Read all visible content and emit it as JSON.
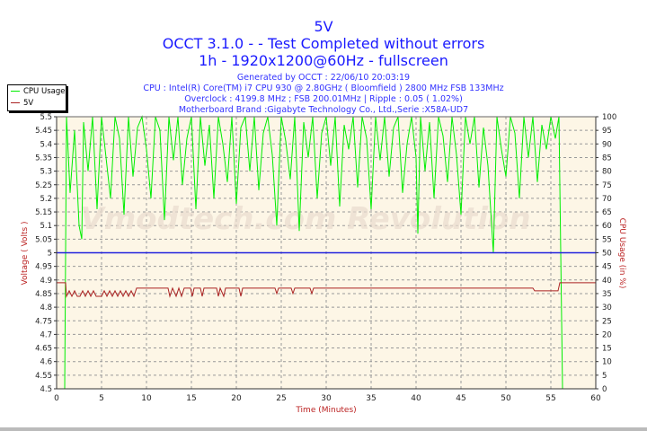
{
  "header": {
    "title": "5V",
    "subtitle": "OCCT 3.1.0 -  - Test Completed without errors",
    "mode": "1h - 1920x1200@60Hz - fullscreen",
    "info": [
      "Generated by OCCT : 22/06/10 20:03:19",
      "CPU : Intel(R) Core(TM) i7 CPU 930 @ 2.80GHz ( Bloomfield ) 2800 MHz FSB 133MHz",
      "Overclock : 4199.8 MHz ; FSB 200.01MHz | Ripple : 0.05 ( 1.02%)",
      "Motherboard Brand :Gigabyte Technology Co., Ltd.,Serie :X58A-UD7"
    ]
  },
  "watermark": "Vmodtech.com Revolution",
  "colors": {
    "cpu": "#00ee00",
    "voltage": "#aa2222",
    "reference": "#2222dd",
    "plot_bg": "#fdf6e6",
    "title": "#1a1aff",
    "axis_label": "#bb2222"
  },
  "chart_data": {
    "type": "line",
    "xlabel": "Time (Minutes)",
    "ylabel": "Voltage ( Volts )",
    "y2label": "CPU Usage (in %)",
    "xlim": [
      0,
      60
    ],
    "ylim": [
      4.5,
      5.5
    ],
    "y2lim": [
      0,
      100
    ],
    "grid": true,
    "legend": "top-left",
    "xticks": [
      "0",
      "5",
      "10",
      "15",
      "20",
      "25",
      "30",
      "35",
      "40",
      "45",
      "50",
      "55",
      "60"
    ],
    "yticks": [
      "4.5",
      "4.55",
      "4.6",
      "4.65",
      "4.7",
      "4.75",
      "4.8",
      "4.85",
      "4.9",
      "4.95",
      "5",
      "5.05",
      "5.1",
      "5.15",
      "5.2",
      "5.25",
      "5.3",
      "5.35",
      "5.4",
      "5.45",
      "5.5"
    ],
    "y2ticks": [
      "0",
      "5",
      "10",
      "15",
      "20",
      "25",
      "30",
      "35",
      "40",
      "45",
      "50",
      "55",
      "60",
      "65",
      "70",
      "75",
      "80",
      "85",
      "90",
      "95",
      "100"
    ],
    "reference_line": 5.0,
    "series": [
      {
        "name": "CPU Usage",
        "axis": "right",
        "x": [
          0,
          0.9,
          1.1,
          1.5,
          2,
          2.5,
          2.8,
          3,
          3.5,
          4,
          4.5,
          5,
          5.5,
          6,
          6.5,
          7,
          7.5,
          8,
          8.5,
          9,
          9.5,
          10,
          10.5,
          11,
          11.5,
          12,
          12.5,
          13,
          13.5,
          14,
          14.5,
          15,
          15.5,
          16,
          16.5,
          17,
          17.5,
          18,
          18.5,
          19,
          19.5,
          20,
          20.5,
          21,
          21.5,
          22,
          22.5,
          23,
          23.5,
          24,
          24.5,
          25,
          25.5,
          26,
          26.5,
          27,
          27.5,
          28,
          28.5,
          29,
          29.5,
          30,
          30.5,
          31,
          31.5,
          32,
          32.5,
          33,
          33.5,
          34,
          34.5,
          35,
          35.5,
          36,
          36.5,
          37,
          37.5,
          38,
          38.5,
          39,
          39.5,
          40,
          40.2,
          40.5,
          41,
          41.5,
          42,
          42.5,
          43,
          43.5,
          44,
          44.5,
          45,
          45.5,
          46,
          46.5,
          47,
          47.5,
          48,
          48.6,
          49,
          49.5,
          50,
          50.5,
          51,
          51.5,
          52,
          52.5,
          53,
          53.5,
          54,
          54.5,
          55,
          55.5,
          55.9,
          56.3,
          60
        ],
        "y": [
          0,
          0,
          100,
          72,
          95,
          60,
          55,
          98,
          80,
          100,
          66,
          100,
          85,
          70,
          100,
          92,
          64,
          100,
          78,
          96,
          100,
          88,
          70,
          100,
          95,
          62,
          100,
          84,
          100,
          75,
          92,
          100,
          66,
          100,
          82,
          97,
          70,
          100,
          90,
          76,
          100,
          68,
          96,
          100,
          80,
          100,
          73,
          94,
          100,
          86,
          60,
          100,
          91,
          77,
          100,
          58,
          98,
          85,
          100,
          70,
          94,
          100,
          82,
          100,
          67,
          97,
          88,
          100,
          74,
          100,
          92,
          66,
          100,
          84,
          100,
          78,
          96,
          100,
          72,
          90,
          100,
          85,
          57,
          100,
          80,
          98,
          70,
          100,
          93,
          76,
          100,
          86,
          64,
          100,
          90,
          100,
          74,
          96,
          82,
          50,
          100,
          88,
          78,
          100,
          94,
          70,
          100,
          85,
          100,
          76,
          97,
          88,
          100,
          92,
          100,
          0,
          0
        ]
      },
      {
        "name": "5V",
        "axis": "left",
        "x": [
          0,
          1,
          1.1,
          1.4,
          1.7,
          2,
          2.3,
          2.6,
          2.9,
          3.2,
          3.5,
          3.8,
          4.1,
          4.4,
          4.7,
          5,
          5.3,
          5.6,
          5.9,
          6.2,
          6.5,
          6.8,
          7.1,
          7.4,
          7.7,
          8,
          8.3,
          8.6,
          8.9,
          9.2,
          12.4,
          12.6,
          12.9,
          13.3,
          13.6,
          13.9,
          14.2,
          14.9,
          15.1,
          15.3,
          16,
          16.2,
          16.4,
          17.8,
          18,
          18.2,
          18.6,
          18.8,
          19,
          20.3,
          20.5,
          20.7,
          24.3,
          24.5,
          24.7,
          26.1,
          26.3,
          26.5,
          28.2,
          28.4,
          28.6,
          53,
          53.2,
          55.8,
          56,
          60
        ],
        "y": [
          4.89,
          4.89,
          4.84,
          4.86,
          4.84,
          4.86,
          4.84,
          4.84,
          4.86,
          4.84,
          4.86,
          4.84,
          4.86,
          4.84,
          4.84,
          4.84,
          4.86,
          4.84,
          4.86,
          4.84,
          4.86,
          4.84,
          4.86,
          4.84,
          4.86,
          4.84,
          4.86,
          4.84,
          4.87,
          4.87,
          4.87,
          4.84,
          4.87,
          4.84,
          4.87,
          4.84,
          4.87,
          4.87,
          4.84,
          4.87,
          4.87,
          4.84,
          4.87,
          4.87,
          4.84,
          4.87,
          4.84,
          4.87,
          4.87,
          4.87,
          4.84,
          4.87,
          4.87,
          4.85,
          4.87,
          4.87,
          4.85,
          4.87,
          4.87,
          4.85,
          4.87,
          4.87,
          4.86,
          4.86,
          4.89,
          4.89
        ]
      }
    ]
  }
}
